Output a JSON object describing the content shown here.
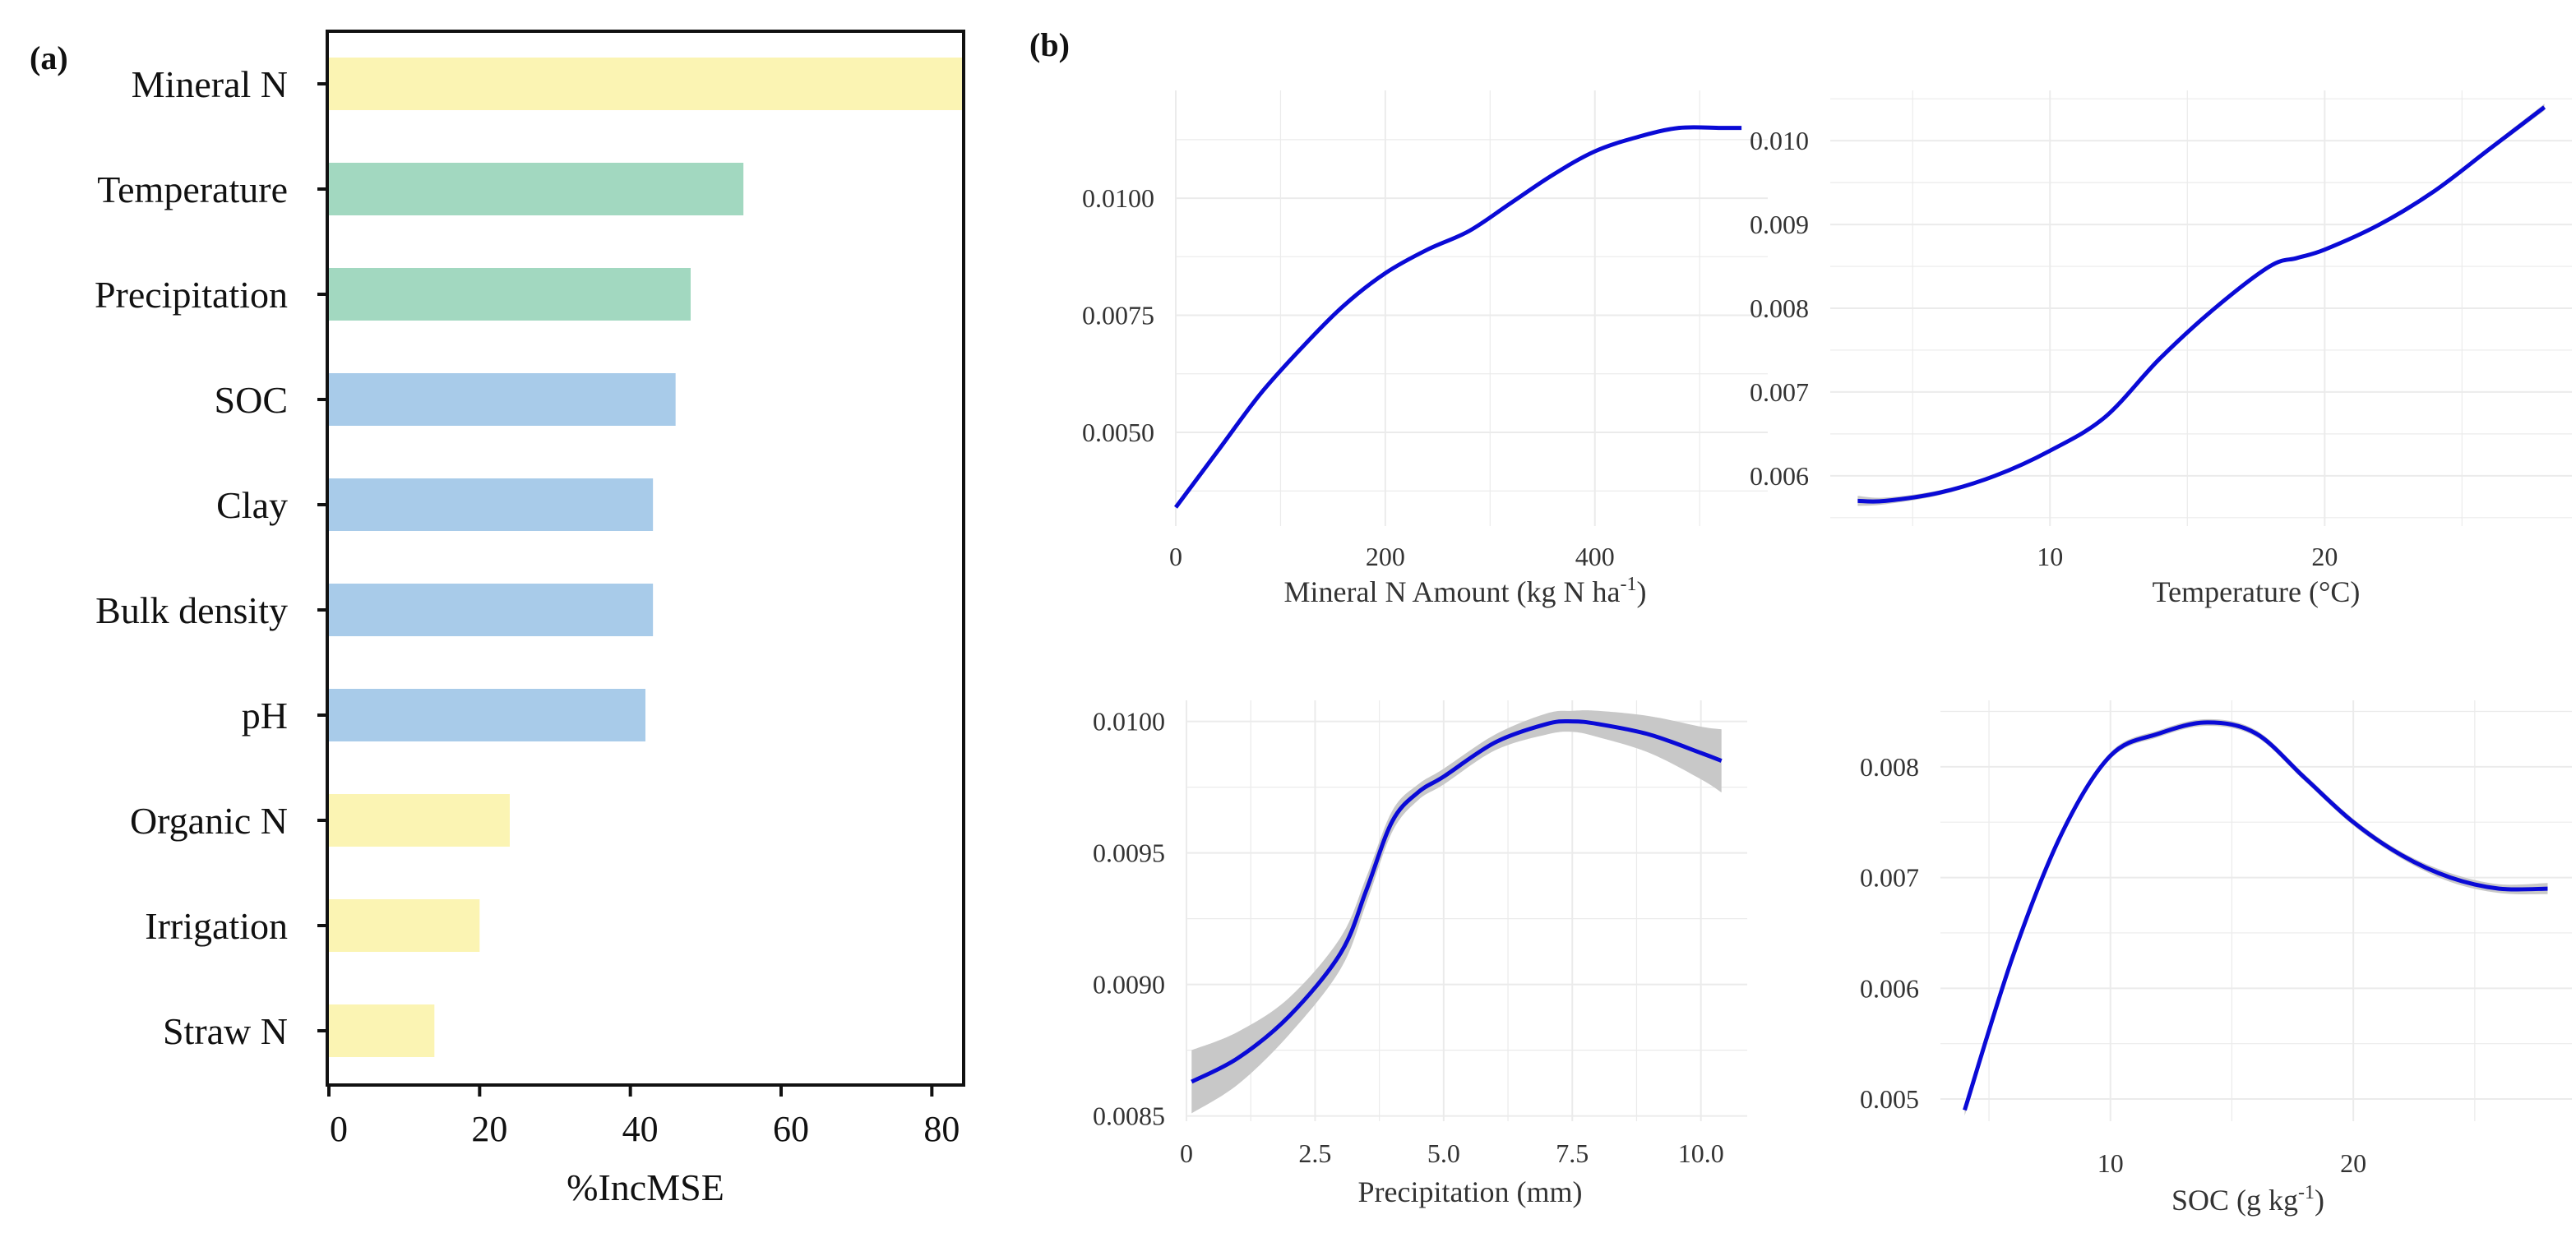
{
  "chart_data": [
    {
      "panel": "(a)",
      "type": "bar",
      "orientation": "horizontal",
      "xlabel": "%IncMSE",
      "xlim": [
        0,
        84
      ],
      "xticks": [
        0,
        20,
        40,
        60,
        80
      ],
      "categories": [
        "Mineral N",
        "Temperature",
        "Precipitation",
        "SOC",
        "Clay",
        "Bulk density",
        "pH",
        "Organic N",
        "Irrigation",
        "Straw N"
      ],
      "values": [
        84,
        55,
        48,
        46,
        43,
        43,
        42,
        24,
        20,
        14
      ],
      "bar_colors": [
        "#fbf4b3",
        "#a2d8c0",
        "#a2d8c0",
        "#a8cbe9",
        "#a8cbe9",
        "#a8cbe9",
        "#a8cbe9",
        "#fbf4b3",
        "#fbf4b3",
        "#fbf4b3"
      ]
    },
    {
      "panel": "(b)",
      "type": "line",
      "xlabel": "Mineral N  Amount (kg N ha",
      "xlabel_sup": "-1",
      "xlabel_end": ")",
      "xlim": [
        0,
        565
      ],
      "ylim": [
        0.003,
        0.0123
      ],
      "xticks": [
        0,
        200,
        400
      ],
      "yticks": [
        0.005,
        0.0075,
        0.01
      ],
      "ytick_labels": [
        "0.0050",
        "0.0075",
        "0.0100"
      ],
      "x": [
        0,
        40,
        80,
        120,
        160,
        200,
        240,
        280,
        320,
        360,
        400,
        440,
        480,
        520,
        540
      ],
      "y": [
        0.0034,
        0.0046,
        0.0058,
        0.0068,
        0.0077,
        0.0084,
        0.0089,
        0.0093,
        0.0099,
        0.0105,
        0.011,
        0.0113,
        0.0115,
        0.0115,
        0.0115
      ],
      "band": [
        0,
        0,
        0,
        0,
        0,
        0,
        0,
        0,
        0,
        0,
        0,
        0,
        0,
        0,
        0
      ],
      "line_color": "#0a0ad6",
      "band_color": "#c8c8c8"
    },
    {
      "type": "line",
      "xlabel": "Temperature (°C)",
      "xlim": [
        2,
        29
      ],
      "ylim": [
        0.0054,
        0.0106
      ],
      "xticks": [
        10,
        20
      ],
      "yticks": [
        0.006,
        0.007,
        0.008,
        0.009,
        0.01
      ],
      "ytick_labels": [
        "0.006",
        "0.007",
        "0.008",
        "0.009",
        "0.010"
      ],
      "x": [
        3,
        4,
        6,
        8,
        10,
        12,
        14,
        16,
        18,
        19,
        20,
        22,
        24,
        26,
        28
      ],
      "y": [
        0.0057,
        0.0057,
        0.0058,
        0.006,
        0.0063,
        0.0067,
        0.0074,
        0.008,
        0.0085,
        0.0086,
        0.0087,
        0.009,
        0.0094,
        0.0099,
        0.0104
      ],
      "band": [
        6e-05,
        4e-05,
        3e-05,
        2e-05,
        2e-05,
        2e-05,
        2e-05,
        2e-05,
        2e-05,
        2e-05,
        2e-05,
        2e-05,
        2e-05,
        3e-05,
        4e-05
      ],
      "line_color": "#0a0ad6",
      "band_color": "#c8c8c8"
    },
    {
      "type": "line",
      "xlabel": "Precipitation (mm)",
      "xlim": [
        0,
        10.9
      ],
      "ylim": [
        0.00848,
        0.01008
      ],
      "xticks": [
        0,
        2.5,
        5,
        7.5,
        10
      ],
      "xtick_labels": [
        "0",
        "2.5",
        "5.0",
        "7.5",
        "10.0"
      ],
      "yticks": [
        0.0085,
        0.009,
        0.0095,
        0.01
      ],
      "ytick_labels": [
        "0.0085",
        "0.0090",
        "0.0095",
        "0.0100"
      ],
      "x": [
        0.1,
        1,
        2,
        3,
        3.5,
        4,
        4.5,
        5,
        6,
        7,
        7.5,
        8,
        9,
        10,
        10.4
      ],
      "y": [
        0.00863,
        0.00872,
        0.00888,
        0.00912,
        0.00936,
        0.00962,
        0.00973,
        0.00979,
        0.00992,
        0.00999,
        0.01,
        0.00999,
        0.00995,
        0.00988,
        0.00985
      ],
      "band": [
        0.00012,
        0.0001,
        7e-05,
        6e-05,
        5e-05,
        4e-05,
        3e-05,
        3e-05,
        3e-05,
        4e-05,
        4e-05,
        5e-05,
        7e-05,
        0.0001,
        0.00012
      ],
      "line_color": "#0a0ad6",
      "band_color": "#c8c8c8"
    },
    {
      "type": "line",
      "xlabel": "SOC  (g kg",
      "xlabel_sup": "-1",
      "xlabel_end": ")",
      "xlim": [
        3,
        29
      ],
      "ylim": [
        0.0048,
        0.0086
      ],
      "xticks": [
        10,
        20
      ],
      "yticks": [
        0.005,
        0.006,
        0.007,
        0.008
      ],
      "ytick_labels": [
        "0.005",
        "0.006",
        "0.007",
        "0.008"
      ],
      "x": [
        4,
        6,
        8,
        10,
        12,
        14,
        16,
        18,
        20,
        22,
        24,
        26,
        28
      ],
      "y": [
        0.0049,
        0.0063,
        0.0074,
        0.0081,
        0.0083,
        0.0084,
        0.0083,
        0.0079,
        0.0075,
        0.0072,
        0.007,
        0.0069,
        0.0069
      ],
      "band": [
        5e-05,
        4e-05,
        3e-05,
        3e-05,
        3e-05,
        3e-05,
        3e-05,
        3e-05,
        3e-05,
        3e-05,
        4e-05,
        4e-05,
        5e-05
      ],
      "line_color": "#0a0ad6",
      "band_color": "#c8c8c8"
    }
  ]
}
